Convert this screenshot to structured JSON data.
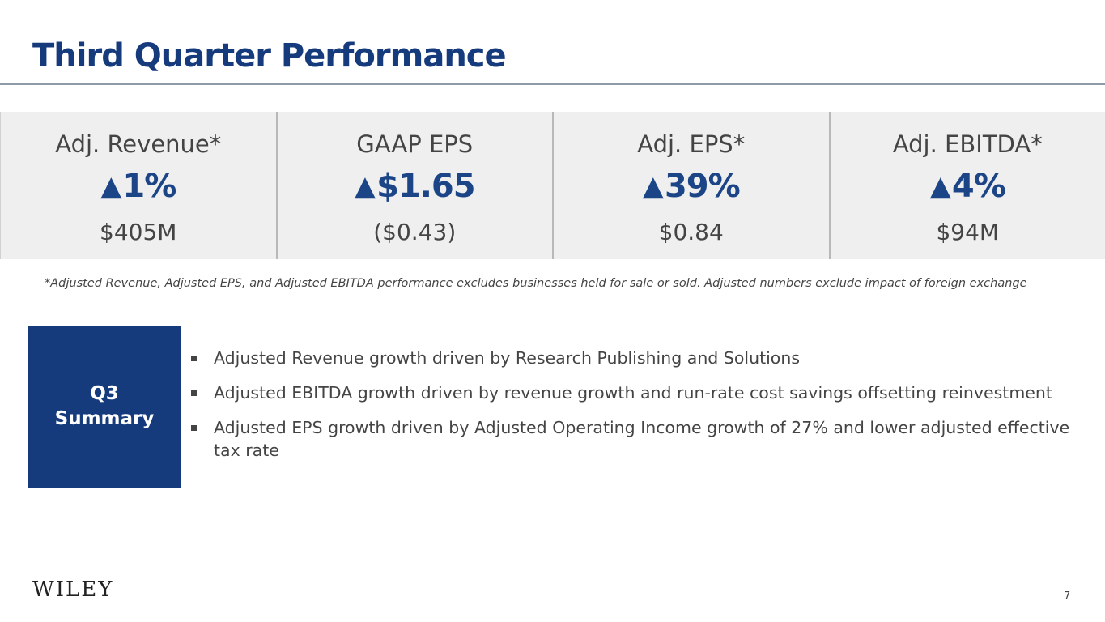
{
  "header": {
    "title": "Third Quarter Performance"
  },
  "metrics": [
    {
      "label": "Adj. Revenue*",
      "arrow": "▲",
      "change": "1%",
      "value": "$405M"
    },
    {
      "label": "GAAP EPS",
      "arrow": "▲",
      "change": "$1.65",
      "value": "($0.43)"
    },
    {
      "label": "Adj. EPS*",
      "arrow": "▲",
      "change": "39%",
      "value": "$0.84"
    },
    {
      "label": "Adj. EBITDA*",
      "arrow": "▲",
      "change": "4%",
      "value": "$94M"
    }
  ],
  "footnote": "*Adjusted Revenue, Adjusted EPS, and Adjusted EBITDA performance excludes businesses held for sale or sold.  Adjusted numbers exclude impact of foreign exchange",
  "summary": {
    "box_line1": "Q3",
    "box_line2": "Summary",
    "bullets": [
      "Adjusted Revenue growth driven by Research Publishing and Solutions",
      "Adjusted EBITDA growth driven by revenue growth and run-rate cost savings offsetting reinvestment",
      "Adjusted EPS growth driven by Adjusted Operating Income growth of 27% and lower adjusted effective tax rate"
    ]
  },
  "footer": {
    "logo": "WILEY",
    "page_number": "7"
  },
  "colors": {
    "primary": "#163b7d",
    "metric_accent": "#1c4587",
    "panel_bg": "#efefef",
    "text": "#444444"
  },
  "icons": {
    "increase": "triangle-up-icon",
    "bullet": "square-bullet-icon"
  }
}
